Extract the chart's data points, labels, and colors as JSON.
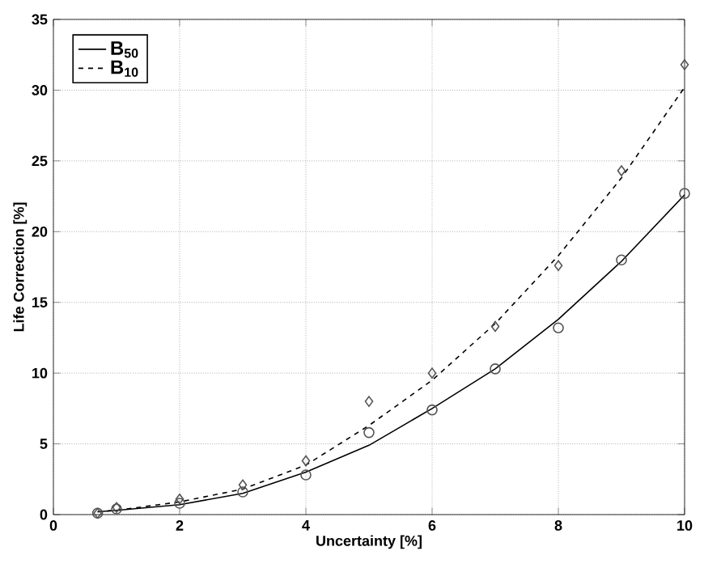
{
  "chart_data": {
    "type": "line",
    "xlabel": "Uncertainty [%]",
    "ylabel": "Life Correction [%]",
    "xlim": [
      0,
      10
    ],
    "ylim": [
      0,
      35
    ],
    "xticks": [
      0,
      2,
      4,
      6,
      8,
      10
    ],
    "yticks": [
      0,
      5,
      10,
      15,
      20,
      25,
      30,
      35
    ],
    "grid": true,
    "legend": "top left",
    "series": [
      {
        "name": "B$_{50}$",
        "line_style": "solid",
        "marker": "none",
        "color": "#000000",
        "x": [
          0.7,
          1,
          2,
          3,
          4,
          5,
          6,
          7,
          8,
          9,
          10
        ],
        "values": [
          0.2,
          0.3,
          0.7,
          1.5,
          3.0,
          4.9,
          7.5,
          10.3,
          13.8,
          17.9,
          22.6
        ]
      },
      {
        "name": "B$_{10}$",
        "line_style": "dashed",
        "marker": "none",
        "color": "#000000",
        "x": [
          0.7,
          1,
          2,
          3,
          4,
          5,
          6,
          7,
          8,
          9,
          10
        ],
        "values": [
          0.2,
          0.3,
          0.9,
          1.8,
          3.5,
          6.3,
          9.5,
          13.5,
          18.3,
          23.8,
          30.2
        ]
      },
      {
        "type": "scatter",
        "marker": "circle",
        "color": "#555555",
        "x": [
          0.7,
          1,
          2,
          3,
          4,
          5,
          6,
          7,
          8,
          9,
          10
        ],
        "values": [
          0.1,
          0.4,
          0.8,
          1.6,
          2.8,
          5.8,
          7.4,
          10.3,
          13.2,
          18,
          22.7
        ]
      },
      {
        "type": "scatter",
        "marker": "diamond",
        "color": "#555555",
        "x": [
          0.7,
          1,
          2,
          3,
          4,
          5,
          6,
          7,
          8,
          9,
          10
        ],
        "values": [
          0.1,
          0.5,
          1.1,
          2.1,
          3.8,
          8.0,
          10.0,
          13.3,
          17.6,
          24.3,
          31.8
        ]
      }
    ]
  }
}
